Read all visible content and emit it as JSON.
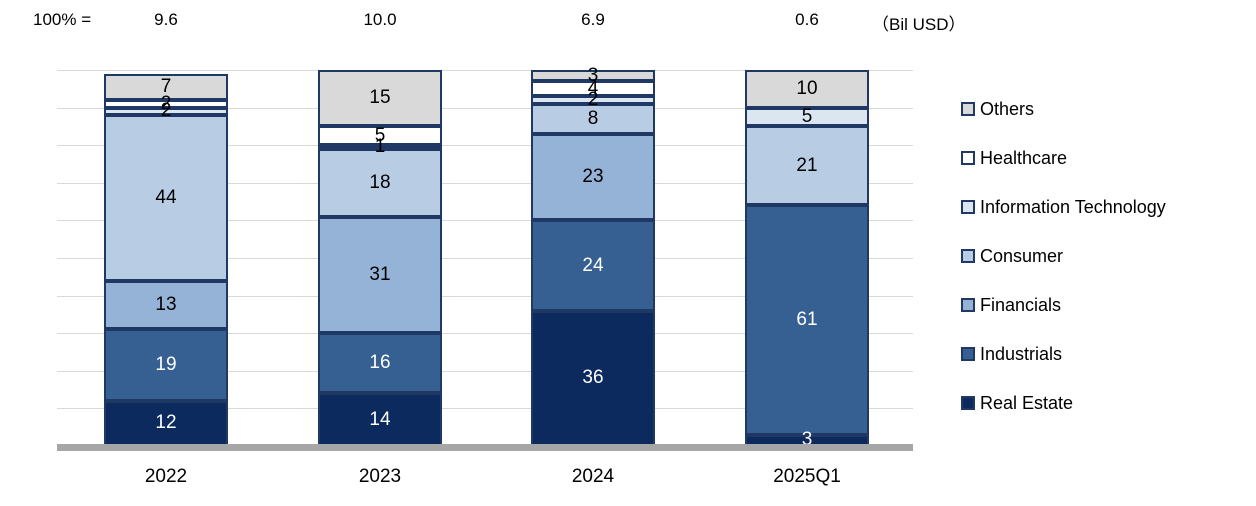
{
  "header": {
    "hundred_label": "100% =",
    "unit_label": "（Bil USD）"
  },
  "chart_data": {
    "type": "bar",
    "variant": "stacked-100-percent-column",
    "title": "",
    "xlabel": "",
    "ylabel": "",
    "ylim": [
      0,
      100
    ],
    "grid": true,
    "legend_position": "right",
    "categories": [
      "2022",
      "2023",
      "2024",
      "2025Q1"
    ],
    "totals_bil_usd": [
      "9.6",
      "10.0",
      "6.9",
      "0.6"
    ],
    "unit": "（Bil USD）",
    "series": [
      {
        "name": "Real Estate",
        "color": "#0d2a5e",
        "label_color": "#ffffff",
        "values": [
          12,
          14,
          36,
          3
        ]
      },
      {
        "name": "Industrials",
        "color": "#366092",
        "label_color": "#ffffff",
        "values": [
          19,
          16,
          24,
          61
        ]
      },
      {
        "name": "Financials",
        "color": "#95b3d7",
        "label_color": "#000000",
        "values": [
          13,
          31,
          23,
          0
        ]
      },
      {
        "name": "Consumer",
        "color": "#b8cce4",
        "label_color": "#000000",
        "values": [
          44,
          18,
          8,
          21
        ]
      },
      {
        "name": "Information Technology",
        "color": "#dce6f1",
        "label_color": "#000000",
        "values": [
          2,
          1,
          2,
          5
        ]
      },
      {
        "name": "Healthcare",
        "color": "#ffffff",
        "label_color": "#000000",
        "values": [
          2,
          5,
          4,
          0
        ]
      },
      {
        "name": "Others",
        "color": "#d9d9d9",
        "label_color": "#000000",
        "values": [
          7,
          15,
          3,
          10
        ]
      }
    ],
    "legend": [
      "Others",
      "Healthcare",
      "Information Technology",
      "Consumer",
      "Financials",
      "Industrials",
      "Real Estate"
    ],
    "styles": {
      "segment_border_color": "#1f3864",
      "gridline_color": "#d9d9d9",
      "axis_line_color": "#a6a6a6"
    }
  }
}
